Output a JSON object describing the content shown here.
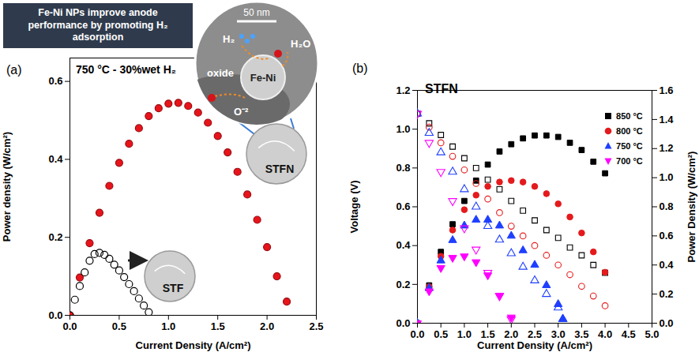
{
  "chart_data": [
    {
      "type": "scatter",
      "panel_label": "(a)",
      "title": "750 °C - 30%wet H₂",
      "xlabel": "Current Density (A/cm²)",
      "ylabel": "Power density (W/cm²)",
      "xlim": [
        0,
        2.5
      ],
      "ylim": [
        0,
        0.66
      ],
      "xticks": [
        {
          "value": 0,
          "label": "0.0"
        },
        0.5,
        {
          "value": 1,
          "label": "1.0"
        },
        1.5,
        {
          "value": 2,
          "label": "2.0"
        },
        2.5
      ],
      "yticks": [
        {
          "value": 0,
          "label": "0.0"
        },
        0.2,
        0.4,
        0.6
      ],
      "annotations": {
        "banner": "Fe-Ni NPs improve anode performance by promoting H₂ adsorption",
        "scale_bar": "50 nm",
        "inset_labels": [
          "H₂",
          "H₂O",
          "oxide",
          "Fe-Ni",
          "O⁻²"
        ]
      },
      "series": [
        {
          "name": "STFN",
          "color": "#e8141b",
          "marker": "circle",
          "x": [
            0,
            0.1,
            0.2,
            0.3,
            0.4,
            0.5,
            0.6,
            0.7,
            0.8,
            0.9,
            1.0,
            1.1,
            1.2,
            1.3,
            1.4,
            1.5,
            1.6,
            1.7,
            1.8,
            1.9,
            2.0,
            2.1,
            2.2
          ],
          "values": [
            0,
            0.097,
            0.185,
            0.263,
            0.332,
            0.391,
            0.44,
            0.48,
            0.511,
            0.531,
            0.543,
            0.545,
            0.537,
            0.52,
            0.494,
            0.46,
            0.418,
            0.368,
            0.31,
            0.245,
            0.175,
            0.1,
            0.035
          ]
        },
        {
          "name": "STF",
          "color": "#000000",
          "marker": "circle-open",
          "x": [
            0,
            0.05,
            0.1,
            0.15,
            0.2,
            0.25,
            0.3,
            0.35,
            0.4,
            0.45,
            0.5,
            0.55,
            0.6,
            0.65,
            0.7,
            0.75,
            0.8
          ],
          "values": [
            0,
            0.04,
            0.075,
            0.11,
            0.14,
            0.157,
            0.16,
            0.155,
            0.145,
            0.13,
            0.115,
            0.098,
            0.08,
            0.062,
            0.043,
            0.025,
            0.008
          ]
        }
      ]
    },
    {
      "type": "scatter",
      "panel_label": "(b)",
      "title": "STFN",
      "xlabel": "Current Density (A/cm²)",
      "ylabel": "Voltage (V)",
      "y2label": "Power Density (W/cm²)",
      "legend": "right",
      "xlim": [
        0,
        5
      ],
      "ylim": [
        0,
        1.2
      ],
      "y2lim": [
        0,
        1.6
      ],
      "xticks": [
        {
          "value": 0,
          "label": "0.0"
        },
        0.5,
        {
          "value": 1,
          "label": "1.0"
        },
        1.5,
        {
          "value": 2,
          "label": "2.0"
        },
        2.5,
        {
          "value": 3,
          "label": "3.0"
        },
        3.5,
        {
          "value": 4,
          "label": "4.0"
        },
        4.5,
        {
          "value": 5,
          "label": "5.0"
        }
      ],
      "yticks": [
        {
          "value": 0,
          "label": "0.0"
        },
        0.2,
        0.4,
        0.6,
        0.8,
        {
          "value": 1,
          "label": "1.0"
        },
        1.2
      ],
      "y2ticks": [
        {
          "value": 0,
          "label": "0.0"
        },
        0.2,
        0.4,
        0.6,
        0.8,
        {
          "value": 1,
          "label": "1.0"
        },
        1.2,
        1.4,
        1.6
      ],
      "series": [
        {
          "name": "850 °C",
          "color": "#000000",
          "marker": "square",
          "x": [
            0,
            0.25,
            0.5,
            0.75,
            1,
            1.25,
            1.5,
            1.75,
            2,
            2.25,
            2.5,
            2.75,
            3,
            3.25,
            3.5,
            3.75,
            4
          ],
          "voltage": [
            1.08,
            1.03,
            0.97,
            0.91,
            0.85,
            0.8,
            0.74,
            0.69,
            0.63,
            0.58,
            0.53,
            0.48,
            0.44,
            0.39,
            0.35,
            0.3,
            0.26
          ],
          "power": [
            0,
            0.26,
            0.49,
            0.68,
            0.84,
            0.98,
            1.09,
            1.18,
            1.23,
            1.27,
            1.29,
            1.29,
            1.28,
            1.24,
            1.19,
            1.11,
            1.03
          ]
        },
        {
          "name": "800 °C",
          "color": "#e41a1c",
          "marker": "circle",
          "x": [
            0,
            0.25,
            0.5,
            0.75,
            1,
            1.25,
            1.5,
            1.75,
            2,
            2.25,
            2.5,
            2.75,
            3,
            3.25,
            3.5,
            3.75,
            4
          ],
          "voltage": [
            1.08,
            1.01,
            0.93,
            0.86,
            0.79,
            0.72,
            0.64,
            0.57,
            0.5,
            0.45,
            0.4,
            0.35,
            0.3,
            0.25,
            0.19,
            0.14,
            0.09
          ],
          "power": [
            0,
            0.25,
            0.46,
            0.64,
            0.78,
            0.88,
            0.94,
            0.97,
            0.98,
            0.97,
            0.94,
            0.89,
            0.82,
            0.73,
            0.62,
            0.49,
            0.35
          ]
        },
        {
          "name": "750 °C",
          "color": "#1f3fff",
          "marker": "triangle",
          "x": [
            0,
            0.25,
            0.5,
            0.75,
            1,
            1.25,
            1.5,
            1.75,
            2,
            2.25,
            2.5,
            2.75,
            3,
            3.1
          ],
          "voltage": [
            1.08,
            0.98,
            0.88,
            0.78,
            0.69,
            0.6,
            0.5,
            0.43,
            0.36,
            0.29,
            0.22,
            0.15,
            0.08,
            0.02
          ],
          "power": [
            0,
            0.24,
            0.43,
            0.57,
            0.67,
            0.71,
            0.71,
            0.67,
            0.6,
            0.5,
            0.4,
            0.26,
            0.13,
            0.03
          ]
        },
        {
          "name": "700 °C",
          "color": "#ff00ff",
          "marker": "triangle-down",
          "x": [
            0,
            0.25,
            0.5,
            0.75,
            1,
            1.25,
            1.5,
            1.75,
            2
          ],
          "voltage": [
            1.08,
            0.93,
            0.78,
            0.63,
            0.49,
            0.38,
            0.26,
            0.14,
            0.02
          ],
          "power": [
            0,
            0.22,
            0.38,
            0.45,
            0.46,
            0.42,
            0.33,
            0.19,
            0.04
          ]
        }
      ]
    }
  ]
}
